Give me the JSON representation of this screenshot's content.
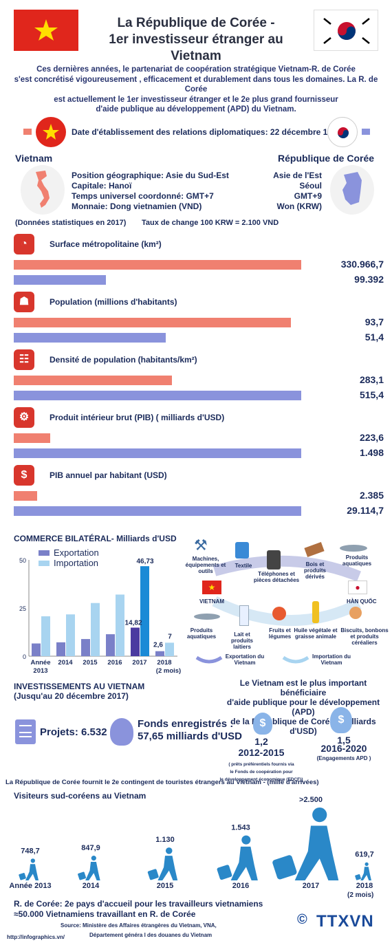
{
  "header": {
    "title_line1": "La République de Corée -",
    "title_line2": "1er investisseur étranger au Vietnam"
  },
  "intro": {
    "line1": "Ces dernières années, le partenariat de coopération stratégique Vietnam-R. de Corée",
    "line2": "s'est concrétisé vigoureusement , efficacement et durablement dans tous les domaines. La R. de Corée",
    "line3": "est actuellement le 1er investisseur étranger et le 2e plus grand fournisseur",
    "line4": "d'aide publique au développement (APD) du Vietnam."
  },
  "relations": {
    "text": "Date d'établissement des relations diplomatiques: 22 décembre 1992"
  },
  "profile": {
    "vn_title": "Vietnam",
    "kr_title": "République de Corée",
    "rows": [
      {
        "vn": "Position géographique: Asie du Sud-Est",
        "kr": "Asie de l'Est"
      },
      {
        "vn": "Capitale:  Hanoï",
        "kr": "Séoul"
      },
      {
        "vn": "Temps universel coordonné: GMT+7",
        "kr": "GMT+9"
      },
      {
        "vn": "Monnaie:  Dong vietnamien (VND)",
        "kr": "Won (KRW)"
      }
    ],
    "stats_note": "(Données statistiques en 2017)",
    "exchange": "Taux de change 100 KRW = 2.100 VND"
  },
  "stats": [
    {
      "label": "Surface métropolitaine (km²)",
      "vn": "330.966,7",
      "kr": "99.392",
      "vn_frac": 0.87,
      "kr_frac": 0.28
    },
    {
      "label": "Population (millions d'habitants)",
      "vn": "93,7",
      "kr": "51,4",
      "vn_frac": 0.84,
      "kr_frac": 0.46
    },
    {
      "label": "Densité de population (habitants/km²)",
      "vn": "283,1",
      "kr": "515,4",
      "vn_frac": 0.48,
      "kr_frac": 0.87
    },
    {
      "label": "Produit intérieur brut (PIB) ( milliards d'USD)",
      "vn": "223,6",
      "kr": "1.498",
      "vn_frac": 0.11,
      "kr_frac": 0.87
    },
    {
      "label": "PIB annuel par habitant  (USD)",
      "vn": "2.385",
      "kr": "29.114,7",
      "vn_frac": 0.07,
      "kr_frac": 0.87
    }
  ],
  "trade": {
    "title": "COMMERCE BILATÉRAL-  Milliards d'USD",
    "legend_export": "Exportation",
    "legend_import": "Importation",
    "val_2017_import": "46,73",
    "val_2017_export": "14,82",
    "val_2018_export": "2,6",
    "val_2018_import": "7",
    "exp_goods_label": "Exportation du Vietnam",
    "imp_goods_label": "Importation du Vietnam",
    "vietnam": "VIETNAM",
    "korea": "HÀN QUỐC",
    "import_goods": [
      "Machines, équipements et outils",
      "Textile",
      "Téléphones et pièces détachées",
      "Bois et produits dérivés",
      "Produits aquatiques"
    ],
    "export_goods": [
      "Produits aquatiques",
      "Lait et produits laitiers",
      "Fruits et légumes",
      "Huile végétale et graisse animale",
      "Biscuits, bonbons et produits céréaliers"
    ]
  },
  "chart_data": [
    {
      "type": "bar",
      "title": "COMMERCE BILATÉRAL-  Milliards d'USD",
      "categories": [
        "Année 2013",
        "2014",
        "2015",
        "2016",
        "2017",
        "2018 (2 mois)"
      ],
      "series": [
        {
          "name": "Exportation",
          "values": [
            6.6,
            7.2,
            8.9,
            11.4,
            14.82,
            2.6
          ]
        },
        {
          "name": "Importation",
          "values": [
            20.7,
            21.7,
            27.6,
            32.0,
            46.73,
            7
          ]
        }
      ],
      "ylim": [
        0,
        50
      ],
      "yticks": [
        "0",
        "25",
        "50"
      ]
    },
    {
      "type": "bar",
      "title": "Visiteurs sud-coréens au Vietnam",
      "categories": [
        "Année 2013",
        "2014",
        "2015",
        "2016",
        "2017",
        "2018 (2 mois)"
      ],
      "values": [
        748.7,
        847.9,
        1130,
        1543,
        2500,
        619.7
      ],
      "value_labels": [
        "748,7",
        "847,9",
        "1.130",
        "1.543",
        ">2.500",
        "619,7"
      ]
    }
  ],
  "invest": {
    "title": "INVESTISSEMENTS AU VIETNAM",
    "subtitle": "(Jusqu'au 20 décembre 2017)",
    "projects": "Projets: 6.532",
    "funds_label": "Fonds enregistrés :",
    "funds_value": "57,65 milliards d'USD",
    "apd_title1": "Le Vietnam est le plus important bénéficiaire",
    "apd_title2": "d'aide publique pour le développement (APD)",
    "apd_title3": "de la République de Corée- (milliards d'USD)",
    "apd1_value": "1,2",
    "apd1_period": "2012-2015",
    "apd1_note1": "( prêts préférentiels fournis via",
    "apd1_note2": "le Fonds de coopération pour",
    "apd1_note3": "le développement économique (EDCF))",
    "apd2_value": "1,5",
    "apd2_period": "2016-2020",
    "apd2_note": "(Engagements APD )"
  },
  "tourism": {
    "title": "La République de Corée fournit le 2e contingent de touristes étrangers au Vietnam - (mille d'arrivées)",
    "subtitle": "Visiteurs sud-coréens au Vietnam",
    "years": [
      "Année 2013",
      "2014",
      "2015",
      "2016",
      "2017",
      "2018"
    ],
    "year_note": "(2 mois)"
  },
  "footer": {
    "workers1": "R. de Corée:  2e pays d'accueil pour les travailleurs vietnamiens",
    "workers2": "≈50.000 Vietnamiens travaillant en R. de Corée",
    "source1": "Source: Ministère des Affaires étrangères du Vietnam, VNA,",
    "source2": "Département généra l des douanes du Vietnam",
    "url": "http://infographics.vn/",
    "logo": "TTXVN",
    "copyright": "©"
  },
  "colors": {
    "vn": "#f08070",
    "kr": "#8a93dc",
    "red": "#d8362c",
    "navy": "#1a2a5a",
    "import_bar": "#a8d4f0",
    "export_bar": "#7a80c8",
    "highlight_import": "#1a8ad6",
    "highlight_export": "#4a3aa0"
  }
}
